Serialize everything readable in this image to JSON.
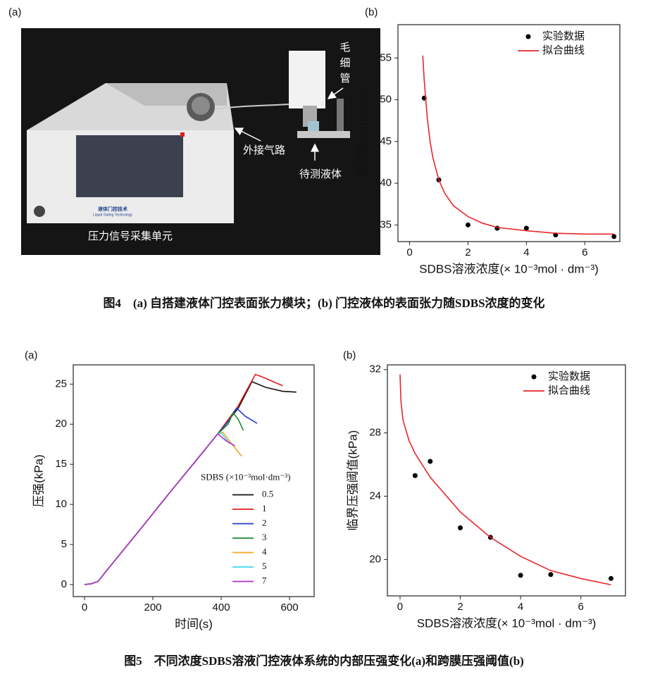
{
  "figure4": {
    "panel_label": "(a)",
    "photo_labels": {
      "capillary": [
        "毛",
        "细",
        "管"
      ],
      "gas_line": "外接气路",
      "liquid": "待测液体",
      "unit": "压力信号采集单元",
      "device_brand": "液体门控技术",
      "device_brand_en": "Liquid Gating Technology"
    },
    "caption": "图4　(a) 自搭建液体门控表面张力模块；(b) 门控液体的表面张力随SDBS浓度的变化"
  },
  "figure5": {
    "caption": "图5　不同浓度SDBS溶液门控液体系统的内部压强变化(a)和跨膜压强阈值(b)"
  },
  "chart_data": [
    {
      "type": "line",
      "panel_label": "(b)",
      "x_label": "SDBS溶液浓度(× 10⁻³mol · dm⁻³)",
      "y_label": "表面张力(mN/m)",
      "xlim": [
        -0.4,
        7.2
      ],
      "ylim": [
        33,
        59
      ],
      "xticks": [
        0,
        2,
        4,
        6
      ],
      "yticks": [
        35,
        40,
        45,
        50,
        55
      ],
      "legend": "upper right",
      "series": [
        {
          "name": "实验数据",
          "type": "scatter",
          "color": "#000000",
          "x": [
            0.5,
            1,
            2,
            3,
            4,
            5,
            7
          ],
          "values": [
            50.2,
            40.4,
            35.0,
            34.6,
            34.6,
            33.8,
            33.6
          ]
        },
        {
          "name": "拟合曲线",
          "type": "line",
          "color": "#e8262a",
          "x": [
            0.45,
            0.5,
            0.6,
            0.7,
            0.8,
            1,
            1.2,
            1.5,
            2,
            2.5,
            3,
            4,
            5,
            6,
            7
          ],
          "values": [
            55.3,
            52.3,
            48.0,
            45.0,
            43.0,
            40.4,
            38.8,
            37.3,
            36.0,
            35.2,
            34.7,
            34.3,
            34.0,
            33.9,
            33.9
          ]
        }
      ]
    },
    {
      "type": "line",
      "panel_label": "(a)",
      "x_label": "时间(s)",
      "y_label": "压强(kPa)",
      "xlim": [
        -33,
        672
      ],
      "ylim": [
        -1.5,
        27.4
      ],
      "xticks": [
        0,
        200,
        400,
        600
      ],
      "yticks": [
        0,
        5,
        10,
        15,
        20,
        25
      ],
      "legend": "right",
      "legend_title": "SDBS (×10⁻³mol·dm⁻³)",
      "series": [
        {
          "name": "0.5",
          "type": "line",
          "color": "#111111",
          "x": [
            0,
            20,
            40,
            60,
            150,
            250,
            350,
            390,
            450,
            490,
            530,
            580,
            620
          ],
          "values": [
            0,
            0.1,
            0.4,
            1.5,
            6.2,
            11.5,
            16.7,
            18.8,
            22.0,
            25.3,
            24.6,
            24.1,
            24.0
          ]
        },
        {
          "name": "1",
          "type": "line",
          "color": "#e41a1c",
          "x": [
            0,
            20,
            40,
            60,
            150,
            250,
            350,
            390,
            450,
            500,
            520,
            580
          ],
          "values": [
            0,
            0.1,
            0.4,
            1.5,
            6.2,
            11.5,
            16.7,
            18.8,
            22.3,
            26.2,
            25.9,
            24.8
          ]
        },
        {
          "name": "2",
          "type": "line",
          "color": "#1f3fd1",
          "x": [
            0,
            20,
            40,
            60,
            150,
            250,
            350,
            390,
            420,
            445,
            470,
            505
          ],
          "values": [
            0,
            0.1,
            0.4,
            1.5,
            6.2,
            11.5,
            16.7,
            18.8,
            20.3,
            22.0,
            21.0,
            20.1
          ]
        },
        {
          "name": "3",
          "type": "line",
          "color": "#1a8a2a",
          "x": [
            0,
            20,
            40,
            60,
            150,
            250,
            350,
            390,
            420,
            435,
            450,
            465
          ],
          "values": [
            0,
            0.1,
            0.4,
            1.5,
            6.2,
            11.5,
            16.7,
            18.8,
            20.0,
            21.4,
            20.6,
            19.2
          ]
        },
        {
          "name": "4",
          "type": "line",
          "color": "#f5a623",
          "x": [
            0,
            20,
            40,
            60,
            150,
            250,
            350,
            390,
            405,
            430,
            460
          ],
          "values": [
            0,
            0.1,
            0.4,
            1.5,
            6.2,
            11.5,
            16.7,
            18.8,
            19.0,
            17.6,
            16.0
          ]
        },
        {
          "name": "5",
          "type": "line",
          "color": "#40d8ee",
          "x": [
            0,
            20,
            40,
            60,
            150,
            250,
            350,
            390,
            400,
            425
          ],
          "values": [
            0,
            0.1,
            0.4,
            1.5,
            6.2,
            11.5,
            16.7,
            18.8,
            18.9,
            17.6
          ]
        },
        {
          "name": "7",
          "type": "line",
          "color": "#b030c0",
          "x": [
            0,
            20,
            40,
            60,
            150,
            250,
            350,
            390,
            415,
            440
          ],
          "values": [
            0,
            0.1,
            0.4,
            1.5,
            6.2,
            11.5,
            16.7,
            18.8,
            17.9,
            17.3
          ]
        }
      ]
    },
    {
      "type": "line",
      "panel_label": "(b)",
      "x_label": "SDBS溶液浓度(× 10⁻³mol · dm⁻³)",
      "y_label": "临界压强阈值(kPa)",
      "xlim": [
        -0.42,
        7.48
      ],
      "ylim": [
        17.7,
        32.3
      ],
      "xticks": [
        0,
        2,
        4,
        6
      ],
      "yticks": [
        20,
        24,
        28,
        32
      ],
      "legend": "upper right",
      "series": [
        {
          "name": "实验数据",
          "type": "scatter",
          "color": "#000000",
          "x": [
            0.5,
            1,
            2,
            3,
            4,
            5,
            7
          ],
          "values": [
            25.3,
            26.2,
            22.0,
            21.4,
            19.0,
            19.05,
            18.8
          ]
        },
        {
          "name": "拟合曲线",
          "type": "line",
          "color": "#e8262a",
          "x": [
            0,
            0.03,
            0.1,
            0.3,
            0.5,
            1,
            2,
            3,
            4,
            5,
            6,
            7
          ],
          "values": [
            31.7,
            30.0,
            28.8,
            27.5,
            26.7,
            25.2,
            23.0,
            21.4,
            20.2,
            19.3,
            18.8,
            18.4
          ]
        }
      ]
    }
  ]
}
